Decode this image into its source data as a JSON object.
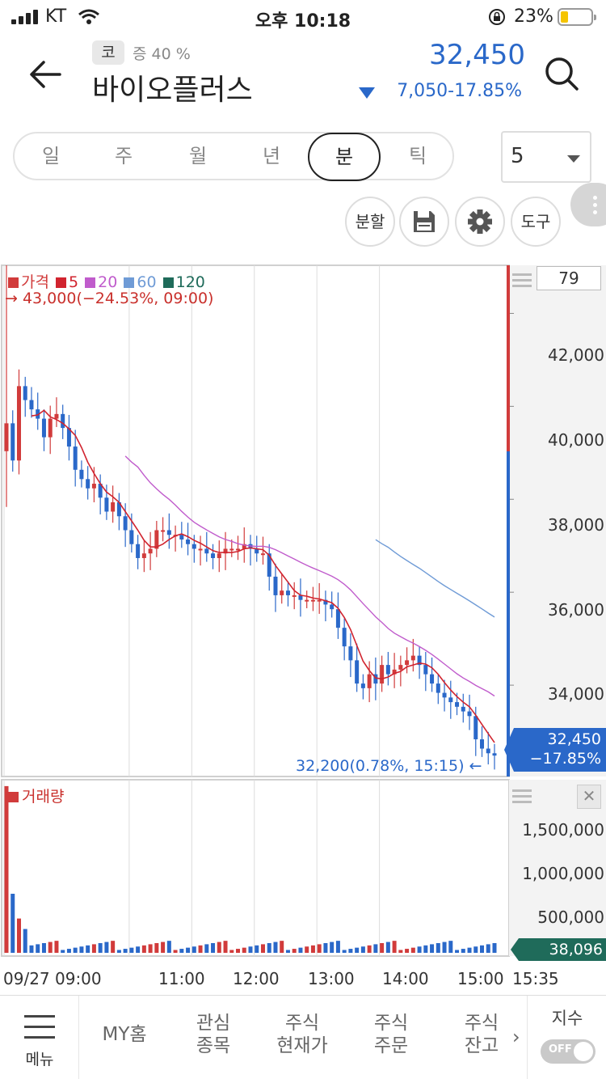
{
  "status_bar": {
    "carrier": "KT",
    "time": "오후 10:18",
    "battery": "23%"
  },
  "header": {
    "market_badge": "코",
    "margin_rate": "증 40 %",
    "stock_name": "바이오플러스",
    "price": "32,450",
    "change": "7,050",
    "change_pct": "-17.85%",
    "change_direction": "down",
    "color_down": "#2a68c9",
    "color_up": "#d13b3b"
  },
  "period_tabs": [
    {
      "label": "일",
      "active": false
    },
    {
      "label": "주",
      "active": false
    },
    {
      "label": "월",
      "active": false
    },
    {
      "label": "년",
      "active": false
    },
    {
      "label": "분",
      "active": true
    },
    {
      "label": "틱",
      "active": false
    }
  ],
  "interval": "5",
  "tools": {
    "split": "분할",
    "save_icon": "floppy-icon",
    "settings_icon": "gear-icon",
    "tools": "도구"
  },
  "chart": {
    "legend": [
      {
        "label": "가격",
        "color": "#d13b3b"
      },
      {
        "label": "5",
        "color": "#d1242f"
      },
      {
        "label": "20",
        "color": "#c05ccc"
      },
      {
        "label": "60",
        "color": "#6f9bd6"
      },
      {
        "label": "120",
        "color": "#1f6b5a"
      }
    ],
    "high_note": "→ 43,000(−24.53%, 09:00)",
    "low_note": "32,200(0.78%, 15:15) ←",
    "count": "79",
    "price_ticks": [
      "42,000",
      "40,000",
      "38,000",
      "36,000",
      "34,000"
    ],
    "current_price": "32,450",
    "current_pct": "−17.85%",
    "volume_label": "거래량",
    "volume_ticks": [
      "1,500,000",
      "1,000,000",
      "500,000"
    ],
    "current_volume": "38,096",
    "x_ticks": [
      "09/27 09:00",
      "11:00",
      "12:00",
      "13:00",
      "14:00",
      "15:00",
      "15:35"
    ]
  },
  "chart_data": {
    "type": "candlestick",
    "interval_minutes": 5,
    "x_start": "09:00",
    "x_end": "15:35",
    "y_price_range": [
      32000,
      43000
    ],
    "y_volume_range": [
      0,
      1800000
    ],
    "close": [
      39600,
      38800,
      40400,
      40100,
      39900,
      39700,
      39300,
      39700,
      39800,
      39500,
      39100,
      38600,
      38400,
      38200,
      38300,
      38000,
      37700,
      37900,
      37600,
      37300,
      37000,
      36700,
      36800,
      36900,
      37300,
      37300,
      37200,
      37200,
      37100,
      37000,
      36900,
      36900,
      36800,
      36700,
      36800,
      36900,
      36900,
      36900,
      37000,
      36900,
      36800,
      36800,
      36300,
      35900,
      36000,
      35900,
      35900,
      35800,
      35800,
      35800,
      35800,
      35700,
      35600,
      35200,
      34800,
      34500,
      34000,
      33900,
      34200,
      34000,
      34400,
      34200,
      34300,
      34400,
      34500,
      34600,
      34400,
      34200,
      34000,
      33800,
      33700,
      33600,
      33500,
      33400,
      33300,
      32800,
      32600,
      32500,
      32450
    ],
    "ma20_start_index": 19,
    "ma60_start_index": 59,
    "volume_peak": 1750000
  },
  "bottom_nav": {
    "menu": "메뉴",
    "items": [
      {
        "line1": "MY홈",
        "line2": ""
      },
      {
        "line1": "관심",
        "line2": "종목"
      },
      {
        "line1": "주식",
        "line2": "현재가"
      },
      {
        "line1": "주식",
        "line2": "주문"
      },
      {
        "line1": "주식",
        "line2": "잔고"
      }
    ],
    "index": "지수",
    "toggle": "OFF"
  }
}
